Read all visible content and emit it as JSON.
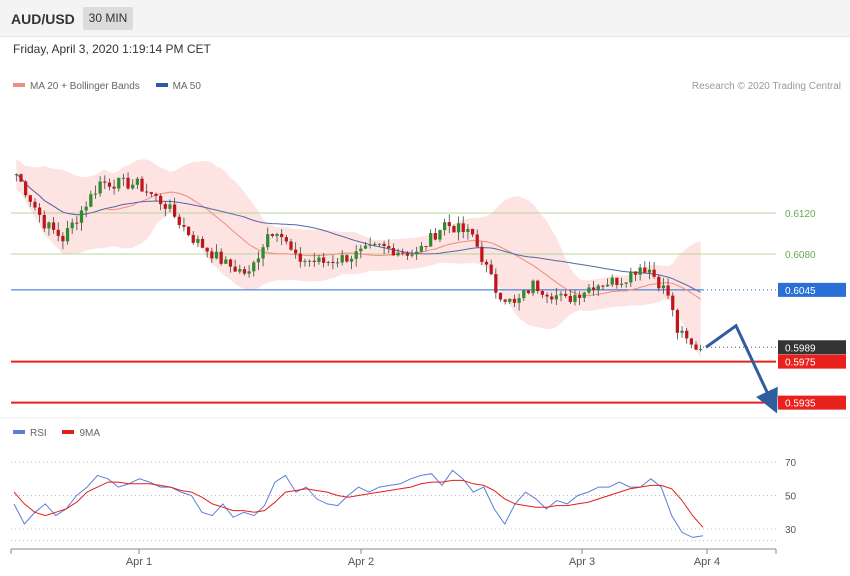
{
  "header": {
    "symbol": "AUD/USD",
    "timeframe": "30 MIN"
  },
  "timestamp": "Friday, April 3, 2020 1:19:14 PM CET",
  "legend_main": [
    {
      "label": "MA 20 + Bollinger Bands",
      "color": "#f28b82"
    },
    {
      "label": "MA 50",
      "color": "#2e5aa8"
    }
  ],
  "legend_rsi": [
    {
      "label": "RSI",
      "color": "#5b7fd6"
    },
    {
      "label": "9MA",
      "color": "#e0201b"
    }
  ],
  "credit": "Research © 2020 Trading Central",
  "chart_data": {
    "type": "candlestick",
    "x_ticks": [
      "Apr 1",
      "Apr 2",
      "Apr 3",
      "Apr 4"
    ],
    "price_ylim": [
      0.5925,
      0.6175
    ],
    "levels": [
      {
        "value": 0.612,
        "label": "0.6120",
        "color": "#b9d69b",
        "kind": "resistance"
      },
      {
        "value": 0.608,
        "label": "0.6080",
        "color": "#b9d69b",
        "kind": "resistance"
      },
      {
        "value": 0.6045,
        "label": "0.6045",
        "color": "#2a6fd6",
        "kind": "pivot"
      },
      {
        "value": 0.5989,
        "label": "0.5989",
        "color": "#333333",
        "kind": "last_price"
      },
      {
        "value": 0.5975,
        "label": "0.5975",
        "color": "#e8211d",
        "kind": "support"
      },
      {
        "value": 0.5935,
        "label": "0.5935",
        "color": "#e8211d",
        "kind": "support"
      }
    ],
    "projection": [
      [
        0,
        0.5989
      ],
      [
        1,
        0.601
      ],
      [
        2,
        0.5935
      ]
    ],
    "rsi": {
      "ticks": [
        70,
        50,
        30
      ],
      "ylim": [
        20,
        80
      ],
      "rsi_values": [
        45,
        33,
        40,
        45,
        38,
        42,
        50,
        55,
        62,
        60,
        55,
        57,
        60,
        58,
        55,
        55,
        52,
        50,
        40,
        38,
        45,
        37,
        40,
        38,
        44,
        58,
        62,
        52,
        55,
        48,
        45,
        44,
        50,
        55,
        52,
        55,
        56,
        57,
        60,
        62,
        63,
        56,
        65,
        60,
        52,
        55,
        42,
        33,
        45,
        52,
        48,
        42,
        47,
        45,
        50,
        52,
        55,
        55,
        58,
        55,
        55,
        60,
        55,
        38,
        28,
        25,
        26
      ],
      "ma_values": [
        52,
        45,
        40,
        38,
        40,
        42,
        46,
        52,
        55,
        58,
        58,
        57,
        57,
        57,
        56,
        55,
        53,
        52,
        49,
        45,
        43,
        41,
        41,
        40,
        41,
        46,
        52,
        53,
        54,
        53,
        52,
        50,
        49,
        50,
        51,
        52,
        53,
        54,
        55,
        57,
        58,
        58,
        59,
        59,
        57,
        56,
        53,
        48,
        45,
        44,
        43,
        43,
        44,
        44,
        45,
        46,
        48,
        50,
        52,
        54,
        55,
        56,
        56,
        54,
        47,
        38,
        31
      ]
    }
  }
}
